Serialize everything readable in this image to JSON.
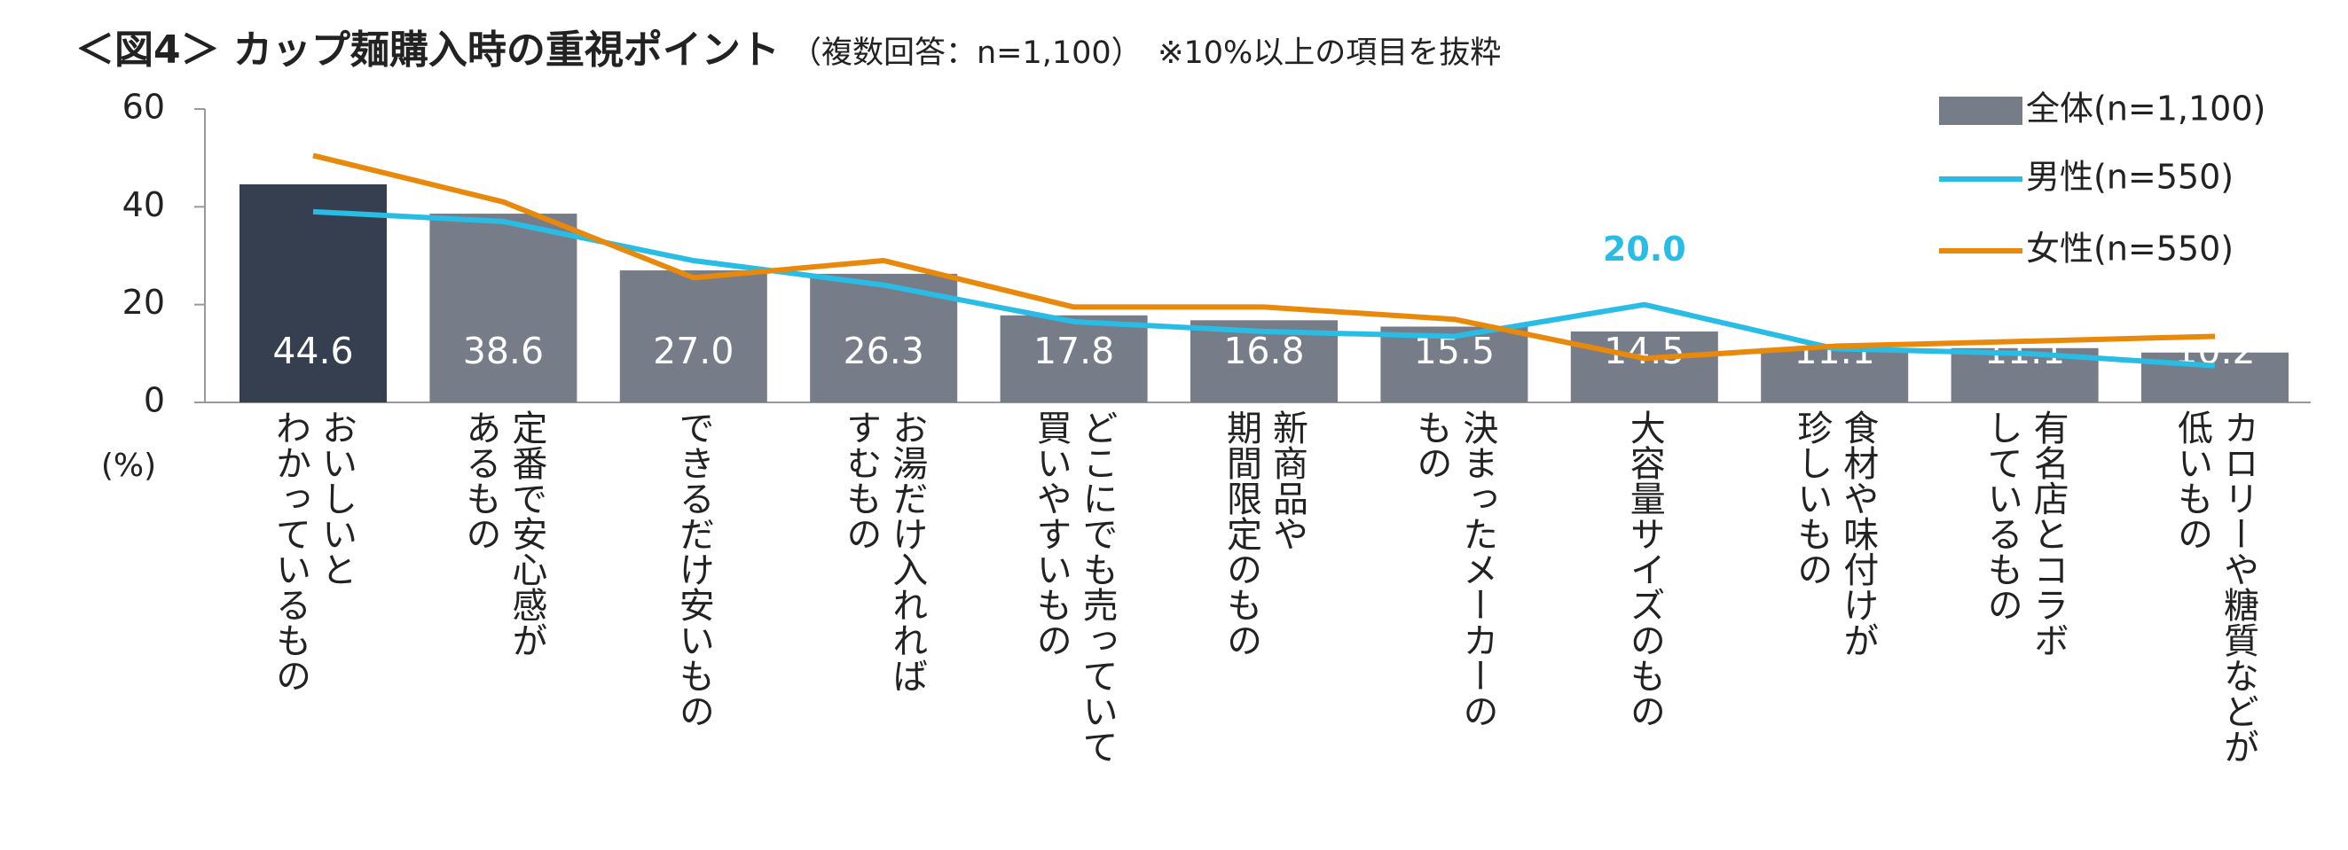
{
  "chart_data": {
    "type": "bar-line",
    "title": "＜図4＞ カップ麺購入時の重視ポイント",
    "subtitle": "（複数回答：n=1,100）　※10%以上の項目を抜粋",
    "y_axis_label": "(%)",
    "categories": [
      "おいしいと\nわかっているもの",
      "定番で安心感が\nあるもの",
      "できるだけ安いもの",
      "お湯だけ入れれば\nすむもの",
      "どこにでも売っていて\n買いやすいもの",
      "新商品や\n期間限定のもの",
      "決まったメーカーの\nもの",
      "大容量サイズのもの",
      "食材や味付けが\n珍しいもの",
      "有名店とコラボ\nしているもの",
      "カロリーや糖質などが\n低いもの"
    ],
    "ylim": [
      0,
      60
    ],
    "yticks": [
      0,
      20,
      40,
      60
    ],
    "series": [
      {
        "name": "全体(n=1,100)",
        "type": "bar",
        "color": "#767c88",
        "colors": [
          "#353f4f",
          "#767c88",
          "#767c88",
          "#767c88",
          "#767c88",
          "#767c88",
          "#767c88",
          "#767c88",
          "#767c88",
          "#767c88",
          "#767c88"
        ],
        "values": [
          44.6,
          38.6,
          27.0,
          26.3,
          17.8,
          16.8,
          15.5,
          14.5,
          11.1,
          11.1,
          10.2
        ],
        "value_labels": [
          "44.6",
          "38.6",
          "27.0",
          "26.3",
          "17.8",
          "16.8",
          "15.5",
          "14.5",
          "11.1",
          "11.1",
          "10.2"
        ]
      },
      {
        "name": "男性(n=550)",
        "type": "line",
        "color": "#29bde6",
        "values": [
          39,
          37,
          29,
          24,
          16.5,
          14.5,
          13.5,
          20.0,
          11,
          10,
          7.5
        ],
        "value_labels": [
          null,
          null,
          null,
          null,
          null,
          null,
          null,
          "20.0",
          null,
          null,
          null
        ]
      },
      {
        "name": "女性(n=550)",
        "type": "line",
        "color": "#e8890c",
        "values": [
          50.5,
          41,
          25.5,
          29,
          19.5,
          19.5,
          17,
          9,
          11.5,
          12.5,
          13.5
        ]
      }
    ]
  }
}
